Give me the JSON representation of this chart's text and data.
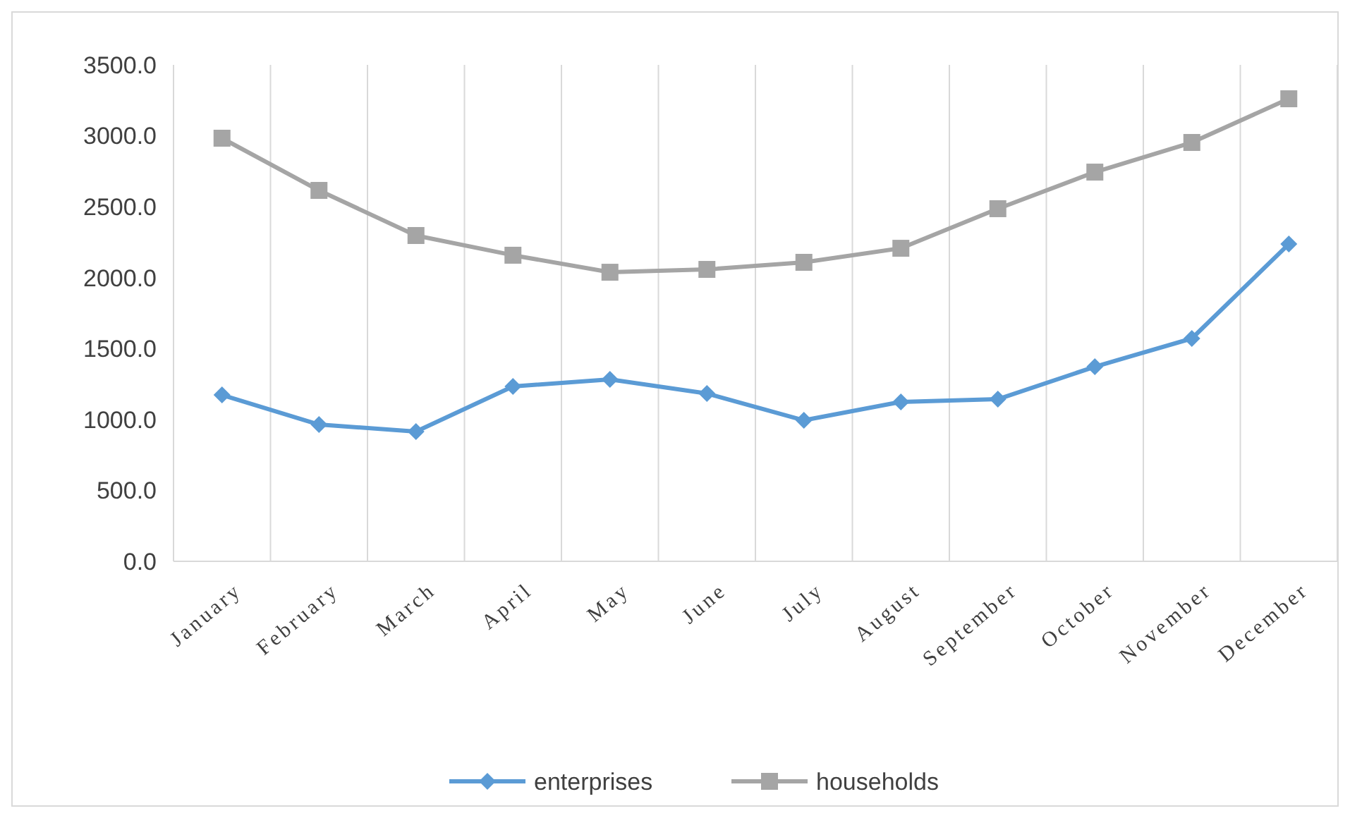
{
  "chart_data": {
    "type": "line",
    "categories": [
      "January",
      "February",
      "March",
      "April",
      "May",
      "June",
      "July",
      "August",
      "September",
      "October",
      "November",
      "December"
    ],
    "series": [
      {
        "name": "enterprises",
        "color": "#5b9bd5",
        "marker": "diamond",
        "values": [
          1173,
          964,
          915,
          1233,
          1283,
          1183,
          994,
          1124,
          1143,
          1372,
          1571,
          2237
        ]
      },
      {
        "name": "households",
        "color": "#a5a5a5",
        "marker": "square",
        "values": [
          2983,
          2615,
          2297,
          2158,
          2038,
          2058,
          2108,
          2207,
          2486,
          2744,
          2953,
          3261
        ]
      }
    ],
    "ylim": [
      0,
      3500
    ],
    "yticks": [
      {
        "value": 0,
        "label": "0.0"
      },
      {
        "value": 500,
        "label": "500.0"
      },
      {
        "value": 1000,
        "label": "1000.0"
      },
      {
        "value": 1500,
        "label": "1500.0"
      },
      {
        "value": 2000,
        "label": "2000.0"
      },
      {
        "value": 2500,
        "label": "2500.0"
      },
      {
        "value": 3000,
        "label": "3000.0"
      },
      {
        "value": 3500,
        "label": "3500.0"
      }
    ],
    "grid": "x",
    "legend": "bottom"
  }
}
